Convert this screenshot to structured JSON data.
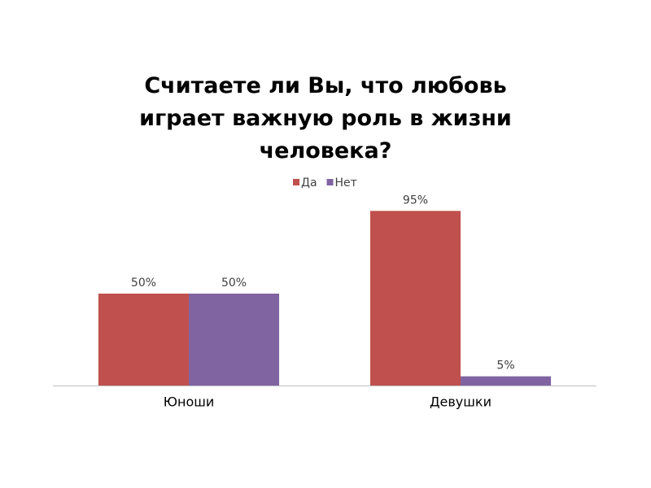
{
  "chart_data": {
    "type": "bar",
    "title": "Считаете ли Вы, что любовь играет важную роль в жизни человека?",
    "categories": [
      "Юноши",
      "Девушки"
    ],
    "series": [
      {
        "name": "Да",
        "color": "#c0504d",
        "values": [
          50,
          95
        ],
        "value_labels": [
          "50%",
          "95%"
        ]
      },
      {
        "name": "Нет",
        "color": "#8064a2",
        "values": [
          50,
          5
        ],
        "value_labels": [
          "50%",
          "5%"
        ]
      }
    ],
    "ylim": [
      0,
      100
    ],
    "grid": false,
    "legend": "top"
  }
}
